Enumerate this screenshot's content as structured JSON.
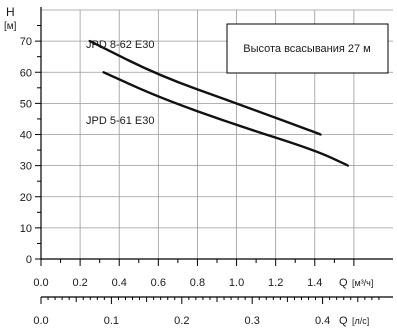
{
  "chart_data": {
    "type": "line",
    "y_axis": {
      "title": "H",
      "unit": "[м]",
      "min": 0,
      "max": 80,
      "ticks": [
        0,
        10,
        20,
        30,
        40,
        50,
        60,
        70
      ]
    },
    "x_axis_flow_m3h": {
      "label": "Q",
      "unit": "[м³/ч]",
      "min": 0,
      "max": 1.8,
      "tick_labels": [
        "0.0",
        "0.2",
        "0.4",
        "0.6",
        "0.8",
        "1.0",
        "1.2",
        "1.4"
      ]
    },
    "x_axis_flow_ls": {
      "label": "Q",
      "unit": "[л/с]",
      "tick_labels": [
        "0.0",
        "0.1",
        "0.2",
        "0.3",
        "0.4"
      ],
      "tick_values": [
        0.0,
        0.1,
        0.2,
        0.3,
        0.4
      ]
    },
    "annotation": "Высота всасывания 27 м",
    "grid": true,
    "series": [
      {
        "name": "JPD 8-62 E30",
        "x": [
          0.25,
          0.6,
          1.0,
          1.43
        ],
        "y": [
          70,
          59,
          50,
          40
        ]
      },
      {
        "name": "JPD 5-61 E30",
        "x": [
          0.32,
          0.6,
          1.0,
          1.4,
          1.57
        ],
        "y": [
          60,
          52,
          43,
          35,
          30
        ]
      }
    ]
  }
}
